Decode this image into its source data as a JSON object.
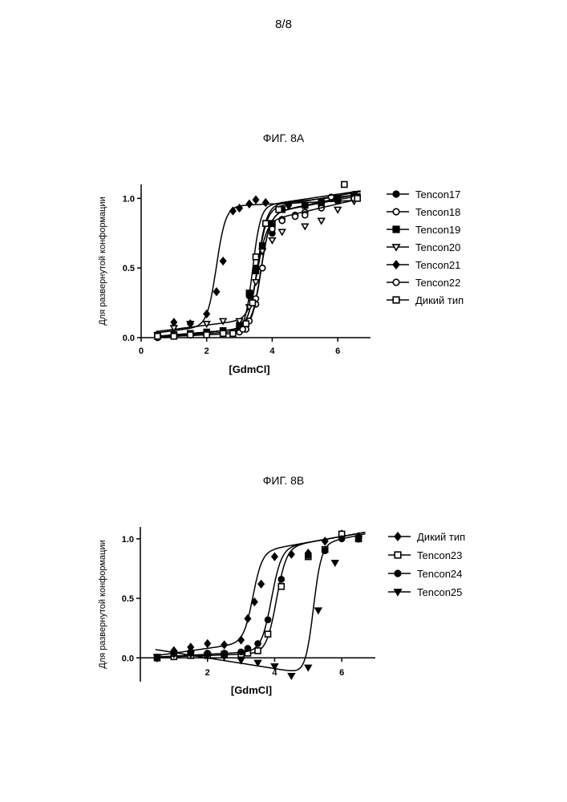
{
  "page_number": "8/8",
  "chart_data": [
    {
      "id": "fig8a",
      "type": "scatter",
      "title": "ФИГ. 8А",
      "xlabel": "[GdmCl]",
      "ylabel": "Для развернутой конформации",
      "xlim": [
        0,
        7
      ],
      "ylim": [
        0,
        1.1
      ],
      "xticks": [
        {
          "v": 0,
          "label": "0"
        },
        {
          "v": 2,
          "label": "2"
        },
        {
          "v": 4,
          "label": "4"
        },
        {
          "v": 6,
          "label": "6"
        }
      ],
      "yticks": [
        {
          "v": 0,
          "label": "0.0"
        },
        {
          "v": 0.5,
          "label": "0.5"
        },
        {
          "v": 1,
          "label": "1.0"
        }
      ],
      "legend_position": "right",
      "series": [
        {
          "name": "Tencon17",
          "marker": "circle-filled",
          "x": [
            0.5,
            1.0,
            1.5,
            2.0,
            2.5,
            3.0,
            3.3,
            3.5,
            3.7,
            4.0,
            4.3,
            4.7,
            5.0,
            5.5,
            6.0,
            6.5
          ],
          "y": [
            0.01,
            0.02,
            0.03,
            0.04,
            0.05,
            0.08,
            0.3,
            0.5,
            0.65,
            0.75,
            0.85,
            0.88,
            0.9,
            0.95,
            0.98,
            1.02
          ],
          "fit": {
            "type": "sigmoid",
            "low_base": 0.0,
            "low_slope": 0.02,
            "high_base": 0.78,
            "high_slope": 0.04,
            "mid": 3.55,
            "width": 0.14
          }
        },
        {
          "name": "Tencon18",
          "marker": "circle-open",
          "x": [
            0.5,
            1.0,
            1.5,
            2.0,
            2.5,
            3.0,
            3.2,
            3.5,
            3.7,
            4.0,
            4.3,
            4.7,
            5.0,
            5.5,
            6.0,
            6.5
          ],
          "y": [
            0.0,
            0.01,
            0.02,
            0.02,
            0.03,
            0.05,
            0.06,
            0.24,
            0.5,
            0.8,
            0.84,
            0.87,
            0.9,
            0.93,
            1.0,
            1.03
          ],
          "fit": {
            "type": "sigmoid",
            "low_base": 0.0,
            "low_slope": 0.02,
            "high_base": 0.7,
            "high_slope": 0.05,
            "mid": 3.65,
            "width": 0.14
          }
        },
        {
          "name": "Tencon19",
          "marker": "square-filled",
          "x": [
            0.5,
            1.0,
            1.5,
            2.0,
            2.5,
            3.0,
            3.3,
            3.5,
            3.7,
            4.0,
            4.3,
            5.0,
            5.5,
            6.0,
            6.5
          ],
          "y": [
            0.01,
            0.02,
            0.03,
            0.04,
            0.05,
            0.09,
            0.32,
            0.48,
            0.66,
            0.82,
            0.92,
            0.95,
            0.97,
            1.0,
            1.01
          ],
          "fit": {
            "type": "sigmoid",
            "low_base": 0.0,
            "low_slope": 0.02,
            "high_base": 0.86,
            "high_slope": 0.025,
            "mid": 3.55,
            "width": 0.14
          }
        },
        {
          "name": "Tencon20",
          "marker": "triangle-down-open",
          "x": [
            0.5,
            1.0,
            1.5,
            2.0,
            2.5,
            3.0,
            3.3,
            3.5,
            3.7,
            4.0,
            4.3,
            5.0,
            5.5,
            6.0,
            6.5
          ],
          "y": [
            0.02,
            0.07,
            0.1,
            0.1,
            0.12,
            0.12,
            0.22,
            0.4,
            0.62,
            0.7,
            0.76,
            0.8,
            0.84,
            0.92,
            0.98
          ],
          "fit": {
            "type": "sigmoid",
            "low_base": 0.03,
            "low_slope": 0.03,
            "high_base": 0.63,
            "high_slope": 0.055,
            "mid": 3.55,
            "width": 0.14
          }
        },
        {
          "name": "Tencon21",
          "marker": "diamond-filled",
          "x": [
            0.5,
            1.0,
            1.5,
            2.0,
            2.3,
            2.5,
            2.8,
            3.0,
            3.3,
            3.5,
            3.8,
            4.5,
            6.0,
            6.5
          ],
          "y": [
            0.02,
            0.11,
            0.1,
            0.17,
            0.33,
            0.55,
            0.91,
            0.93,
            0.96,
            0.99,
            0.97,
            0.95,
            0.99,
            1.02
          ],
          "fit": {
            "type": "sigmoid",
            "low_base": 0.02,
            "low_slope": 0.03,
            "high_base": 0.92,
            "high_slope": 0.01,
            "mid": 2.3,
            "width": 0.14
          }
        },
        {
          "name": "Tencon22",
          "marker": "circle-open",
          "x": [
            0.5,
            1.0,
            1.5,
            2.0,
            2.5,
            3.0,
            3.1,
            3.3,
            3.5,
            3.7,
            4.0,
            5.0,
            5.8,
            6.5
          ],
          "y": [
            0.0,
            0.01,
            0.02,
            0.03,
            0.03,
            0.04,
            0.06,
            0.12,
            0.28,
            0.5,
            0.78,
            0.88,
            1.01,
            1.0
          ],
          "fit": {
            "type": "sigmoid",
            "low_base": 0.0,
            "low_slope": 0.015,
            "high_base": 0.72,
            "high_slope": 0.045,
            "mid": 3.65,
            "width": 0.14
          }
        },
        {
          "name": "Дикий тип",
          "marker": "square-open",
          "x": [
            0.5,
            1.0,
            1.5,
            2.0,
            2.5,
            2.8,
            3.2,
            3.4,
            3.5,
            3.8,
            4.2,
            6.2,
            6.6
          ],
          "y": [
            0.01,
            0.01,
            0.02,
            0.02,
            0.03,
            0.03,
            0.1,
            0.25,
            0.58,
            0.82,
            0.92,
            1.1,
            1.0
          ],
          "fit": {
            "type": "sigmoid",
            "low_base": 0.0,
            "low_slope": 0.01,
            "high_base": 0.82,
            "high_slope": 0.035,
            "mid": 3.4,
            "width": 0.12
          }
        }
      ]
    },
    {
      "id": "fig8b",
      "type": "scatter",
      "title": "ФИГ. 8В",
      "xlabel": "[GdmCl]",
      "ylabel": "Для развернутой конформации",
      "xlim": [
        0,
        7
      ],
      "ylim": [
        -0.2,
        1.1
      ],
      "xticks": [
        {
          "v": 2,
          "label": "2"
        },
        {
          "v": 4,
          "label": "4"
        },
        {
          "v": 6,
          "label": "6"
        }
      ],
      "yticks": [
        {
          "v": 0,
          "label": "0.0"
        },
        {
          "v": 0.5,
          "label": "0.5"
        },
        {
          "v": 1,
          "label": "1.0"
        }
      ],
      "legend_position": "right",
      "series": [
        {
          "name": "Дикий тип",
          "marker": "diamond-filled",
          "x": [
            0.5,
            1.0,
            1.5,
            2.0,
            2.5,
            3.0,
            3.2,
            3.4,
            3.6,
            4.0,
            4.5,
            5.0,
            5.5,
            6.0,
            6.5
          ],
          "y": [
            0.0,
            0.06,
            0.09,
            0.12,
            0.11,
            0.15,
            0.33,
            0.47,
            0.62,
            0.85,
            0.87,
            0.88,
            0.98,
            1.04,
            1.02
          ],
          "fit": {
            "type": "sigmoid",
            "low_base": 0.0,
            "low_slope": 0.04,
            "high_base": 0.72,
            "high_slope": 0.05,
            "mid": 3.35,
            "width": 0.14
          }
        },
        {
          "name": "Tencon23",
          "marker": "square-open",
          "x": [
            0.5,
            1.0,
            1.5,
            2.0,
            2.5,
            3.0,
            3.2,
            3.5,
            3.8,
            4.2,
            5.0,
            5.5,
            6.0,
            6.5
          ],
          "y": [
            0.0,
            0.01,
            0.02,
            0.02,
            0.03,
            0.03,
            0.04,
            0.06,
            0.2,
            0.6,
            0.85,
            0.91,
            1.04,
            1.0
          ],
          "fit": {
            "type": "sigmoid",
            "low_base": 0.0,
            "low_slope": 0.01,
            "high_base": 0.72,
            "high_slope": 0.05,
            "mid": 4.05,
            "width": 0.15
          }
        },
        {
          "name": "Tencon24",
          "marker": "circle-filled",
          "x": [
            0.5,
            1.0,
            1.5,
            2.0,
            2.5,
            3.0,
            3.2,
            3.5,
            3.8,
            4.2,
            5.0,
            5.5,
            6.0,
            6.5
          ],
          "y": [
            0.0,
            0.05,
            0.05,
            0.04,
            0.04,
            0.05,
            0.08,
            0.12,
            0.32,
            0.66,
            0.86,
            0.9,
            1.0,
            1.0
          ],
          "fit": {
            "type": "sigmoid",
            "low_base": 0.0,
            "low_slope": 0.015,
            "high_base": 0.72,
            "high_slope": 0.05,
            "mid": 3.9,
            "width": 0.15
          }
        },
        {
          "name": "Tencon25",
          "marker": "triangle-down-filled",
          "x": [
            0.5,
            1.0,
            1.5,
            2.0,
            2.5,
            3.0,
            3.5,
            4.0,
            4.5,
            5.0,
            5.3,
            5.8,
            6.5
          ],
          "y": [
            0.01,
            0.03,
            0.03,
            0.02,
            0.01,
            -0.02,
            -0.04,
            -0.07,
            -0.15,
            -0.08,
            0.4,
            0.8,
            1.0
          ],
          "fit": {
            "type": "sigmoid",
            "low_base": 0.09,
            "low_slope": -0.045,
            "high_base": 0.64,
            "high_slope": 0.06,
            "mid": 5.15,
            "width": 0.12
          }
        }
      ]
    }
  ]
}
